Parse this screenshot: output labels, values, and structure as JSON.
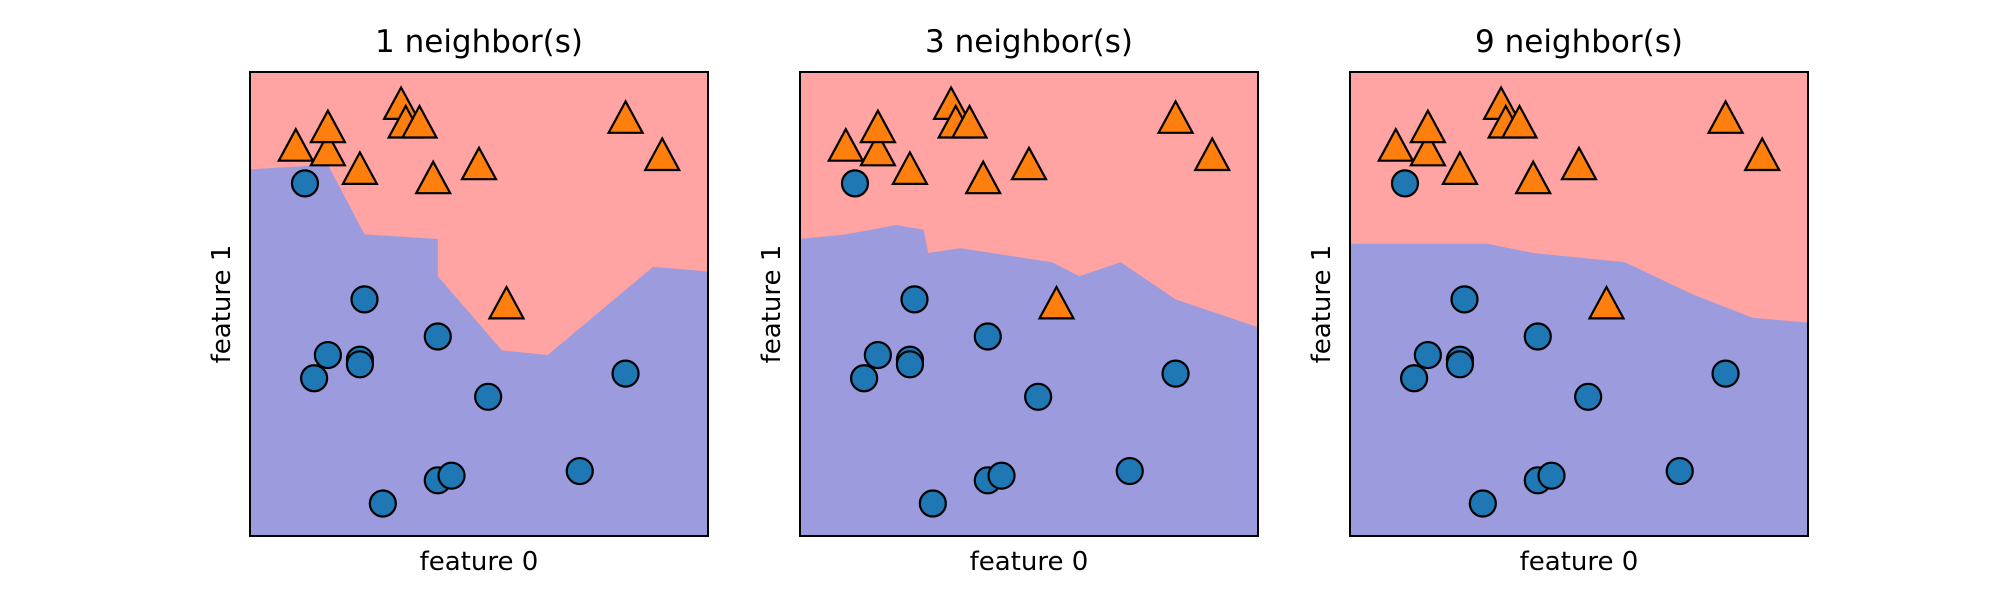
{
  "chart_data": [
    {
      "type": "scatter",
      "title": "1 neighbor(s)",
      "xlabel": "feature 0",
      "ylabel": "feature 1",
      "xticks": "none",
      "yticks": "none",
      "grid": false,
      "background_regions": [
        {
          "class": "triangles",
          "color": "#ffa3a3",
          "location": "upper"
        },
        {
          "class": "circles",
          "color": "#9b9bde",
          "location": "lower"
        }
      ],
      "decision_boundary": {
        "x": [
          0.0,
          0.17,
          0.25,
          0.41,
          0.41,
          0.55,
          0.65,
          0.88,
          1.0
        ],
        "y": [
          0.79,
          0.8,
          0.65,
          0.64,
          0.56,
          0.4,
          0.39,
          0.58,
          0.57
        ]
      },
      "series": [
        {
          "marker": "circle",
          "color": "#1f77b4",
          "points": [
            [
              0.12,
              0.76
            ],
            [
              0.25,
              0.51
            ],
            [
              0.17,
              0.39
            ],
            [
              0.24,
              0.38
            ],
            [
              0.24,
              0.37
            ],
            [
              0.14,
              0.34
            ],
            [
              0.41,
              0.43
            ],
            [
              0.52,
              0.3
            ],
            [
              0.82,
              0.35
            ],
            [
              0.41,
              0.12
            ],
            [
              0.44,
              0.13
            ],
            [
              0.72,
              0.14
            ],
            [
              0.29,
              0.07
            ]
          ]
        },
        {
          "marker": "triangle",
          "color": "#ff7f0e",
          "points": [
            [
              0.1,
              0.84
            ],
            [
              0.17,
              0.83
            ],
            [
              0.17,
              0.88
            ],
            [
              0.33,
              0.93
            ],
            [
              0.34,
              0.89
            ],
            [
              0.37,
              0.89
            ],
            [
              0.24,
              0.79
            ],
            [
              0.4,
              0.77
            ],
            [
              0.5,
              0.8
            ],
            [
              0.82,
              0.9
            ],
            [
              0.9,
              0.82
            ],
            [
              0.56,
              0.5
            ]
          ]
        }
      ]
    },
    {
      "type": "scatter",
      "title": "3 neighbor(s)",
      "xlabel": "feature 0",
      "ylabel": "feature 1",
      "xticks": "none",
      "yticks": "none",
      "grid": false,
      "background_regions": [
        {
          "class": "triangles",
          "color": "#ffa3a3",
          "location": "upper"
        },
        {
          "class": "circles",
          "color": "#9b9bde",
          "location": "lower"
        }
      ],
      "decision_boundary": {
        "x": [
          0.0,
          0.1,
          0.21,
          0.27,
          0.28,
          0.35,
          0.55,
          0.61,
          0.7,
          0.82,
          1.0
        ],
        "y": [
          0.64,
          0.65,
          0.67,
          0.66,
          0.61,
          0.62,
          0.59,
          0.56,
          0.59,
          0.51,
          0.45
        ]
      },
      "series": [
        {
          "marker": "circle",
          "color": "#1f77b4",
          "points": [
            [
              0.12,
              0.76
            ],
            [
              0.25,
              0.51
            ],
            [
              0.17,
              0.39
            ],
            [
              0.24,
              0.38
            ],
            [
              0.24,
              0.37
            ],
            [
              0.14,
              0.34
            ],
            [
              0.41,
              0.43
            ],
            [
              0.52,
              0.3
            ],
            [
              0.82,
              0.35
            ],
            [
              0.41,
              0.12
            ],
            [
              0.44,
              0.13
            ],
            [
              0.72,
              0.14
            ],
            [
              0.29,
              0.07
            ]
          ]
        },
        {
          "marker": "triangle",
          "color": "#ff7f0e",
          "points": [
            [
              0.1,
              0.84
            ],
            [
              0.17,
              0.83
            ],
            [
              0.17,
              0.88
            ],
            [
              0.33,
              0.93
            ],
            [
              0.34,
              0.89
            ],
            [
              0.37,
              0.89
            ],
            [
              0.24,
              0.79
            ],
            [
              0.4,
              0.77
            ],
            [
              0.5,
              0.8
            ],
            [
              0.82,
              0.9
            ],
            [
              0.9,
              0.82
            ],
            [
              0.56,
              0.5
            ]
          ]
        }
      ]
    },
    {
      "type": "scatter",
      "title": "9 neighbor(s)",
      "xlabel": "feature 0",
      "ylabel": "feature 1",
      "xticks": "none",
      "yticks": "none",
      "grid": false,
      "background_regions": [
        {
          "class": "triangles",
          "color": "#ffa3a3",
          "location": "upper"
        },
        {
          "class": "circles",
          "color": "#9b9bde",
          "location": "lower"
        }
      ],
      "decision_boundary": {
        "x": [
          0.0,
          0.15,
          0.3,
          0.4,
          0.6,
          0.75,
          0.88,
          1.0
        ],
        "y": [
          0.63,
          0.63,
          0.63,
          0.61,
          0.59,
          0.52,
          0.47,
          0.46
        ]
      },
      "series": [
        {
          "marker": "circle",
          "color": "#1f77b4",
          "points": [
            [
              0.12,
              0.76
            ],
            [
              0.25,
              0.51
            ],
            [
              0.17,
              0.39
            ],
            [
              0.24,
              0.38
            ],
            [
              0.24,
              0.37
            ],
            [
              0.14,
              0.34
            ],
            [
              0.41,
              0.43
            ],
            [
              0.52,
              0.3
            ],
            [
              0.82,
              0.35
            ],
            [
              0.41,
              0.12
            ],
            [
              0.44,
              0.13
            ],
            [
              0.72,
              0.14
            ],
            [
              0.29,
              0.07
            ]
          ]
        },
        {
          "marker": "triangle",
          "color": "#ff7f0e",
          "points": [
            [
              0.1,
              0.84
            ],
            [
              0.17,
              0.83
            ],
            [
              0.17,
              0.88
            ],
            [
              0.33,
              0.93
            ],
            [
              0.34,
              0.89
            ],
            [
              0.37,
              0.89
            ],
            [
              0.24,
              0.79
            ],
            [
              0.4,
              0.77
            ],
            [
              0.5,
              0.8
            ],
            [
              0.82,
              0.9
            ],
            [
              0.9,
              0.82
            ],
            [
              0.56,
              0.5
            ]
          ]
        }
      ]
    }
  ]
}
